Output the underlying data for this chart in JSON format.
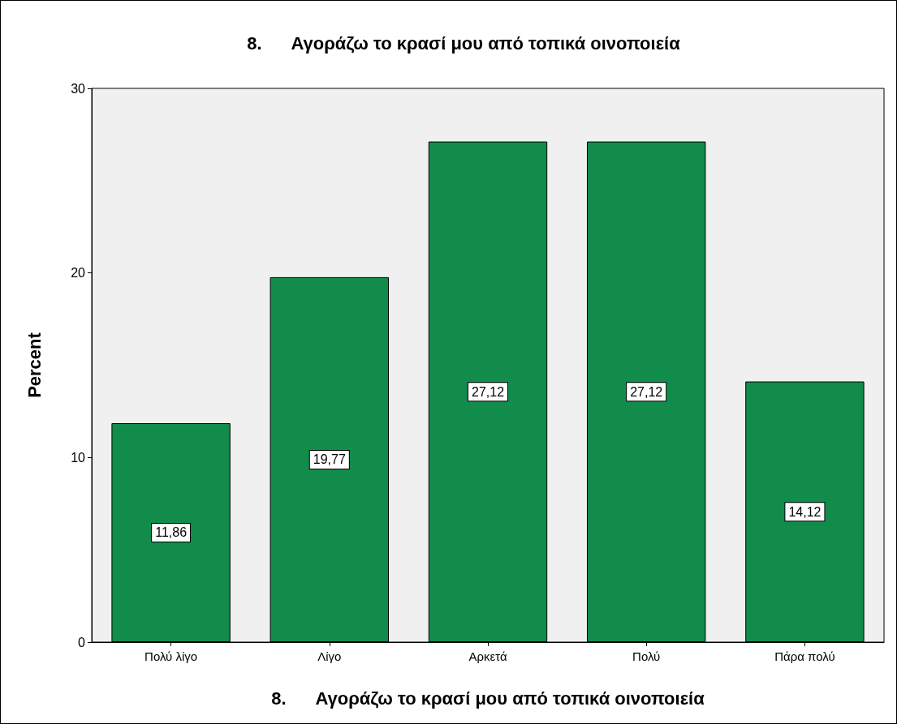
{
  "chart_data": {
    "type": "bar",
    "title": "8.      Αγοράζω το κρασί μου από τοπικά οινοποιεία",
    "xlabel": "8.      Αγοράζω το κρασί μου από τοπικά οινοποιεία",
    "ylabel": "Percent",
    "categories": [
      "Πολύ λίγο",
      "Λίγο",
      "Αρκετά",
      "Πολύ",
      "Πάρα πολύ"
    ],
    "values": [
      11.86,
      19.77,
      27.12,
      27.12,
      14.12
    ],
    "value_labels": [
      "11,86",
      "19,77",
      "27,12",
      "27,12",
      "14,12"
    ],
    "color": "#118c4a",
    "ylim": [
      0,
      30
    ],
    "yticks": [
      0,
      10,
      20,
      30
    ]
  }
}
